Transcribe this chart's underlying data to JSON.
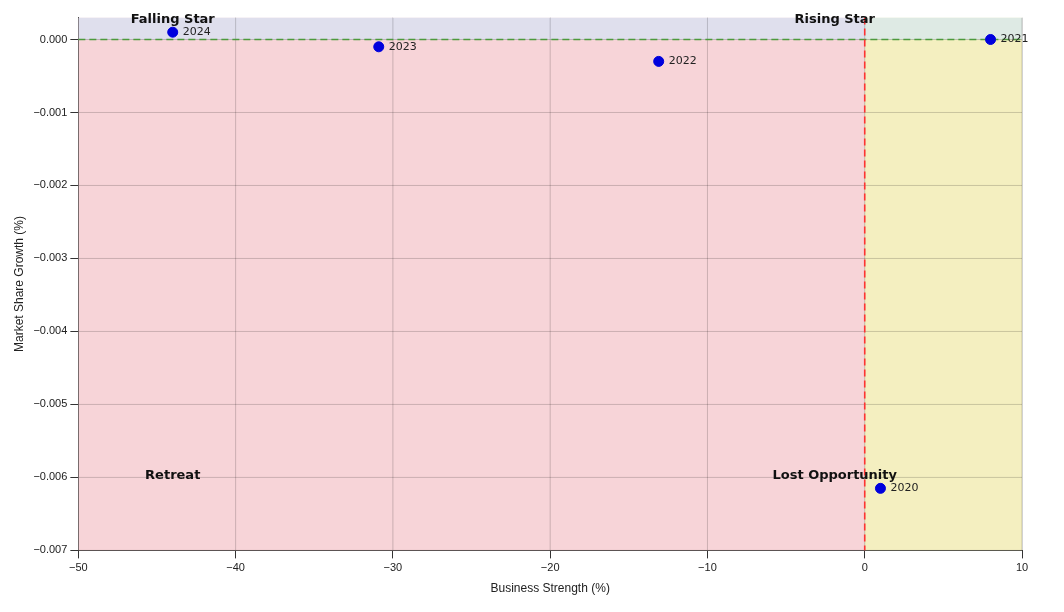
{
  "chart_data": {
    "type": "scatter",
    "xlabel": "Business Strength (%)",
    "ylabel": "Market Share Growth (%)",
    "x": [
      1,
      8,
      -13.1,
      -30.9,
      -44
    ],
    "series": [
      {
        "color": "#0000dd",
        "values": [
          -0.00615,
          0,
          -0.0003,
          -0.0001,
          0.0001
        ]
      }
    ],
    "xlim": [
      -50,
      10
    ],
    "xticks": [
      {
        "value": -50,
        "label": "−50"
      },
      {
        "value": -40,
        "label": "−40"
      },
      {
        "value": -30,
        "label": "−30"
      },
      {
        "value": -20,
        "label": "−20"
      },
      {
        "value": -10,
        "label": "−10"
      },
      0,
      10
    ],
    "ylim": [
      -0.007,
      0.0003
    ],
    "yticks": [
      {
        "value": -0.007,
        "label": "−0.007"
      },
      {
        "value": -0.006,
        "label": "−0.006"
      },
      {
        "value": -0.005,
        "label": "−0.005"
      },
      {
        "value": -0.004,
        "label": "−0.004"
      },
      {
        "value": -0.003,
        "label": "−0.003"
      },
      {
        "value": -0.002,
        "label": "−0.002"
      },
      {
        "value": -0.001,
        "label": "−0.001"
      },
      {
        "value": 0,
        "label": "0.000"
      }
    ],
    "bands": [
      {
        "axis": "x",
        "from": -50,
        "to": 0,
        "color": "#f7d4d8"
      },
      {
        "axis": "x",
        "from": 0,
        "to": 10,
        "color": "#f4efc0"
      },
      {
        "axis": "y",
        "from": 0,
        "to": 0.0003,
        "color": "#cfe6fb"
      }
    ],
    "ref_lines": [
      {
        "axis": "y",
        "value": 0,
        "color": "#4c9a3c",
        "line_style": "dashed"
      },
      {
        "axis": "x",
        "value": 0,
        "color": "#ff3333",
        "line_style": "dashed"
      }
    ],
    "annotations": [
      "Falling Star",
      "Rising Star",
      "Retreat",
      "Lost Opportunity",
      {
        "text": "2020",
        "x": 1,
        "y": -0.00615
      },
      {
        "text": "2021",
        "x": 8,
        "y": 0
      },
      {
        "text": "2022",
        "x": -13.1,
        "y": -0.0003
      },
      {
        "text": "2023",
        "x": -30.9,
        "y": -0.0001
      },
      {
        "text": "2024",
        "x": -44,
        "y": 0.0001
      }
    ],
    "marker": "circle",
    "grid": true,
    "legend": false
  }
}
